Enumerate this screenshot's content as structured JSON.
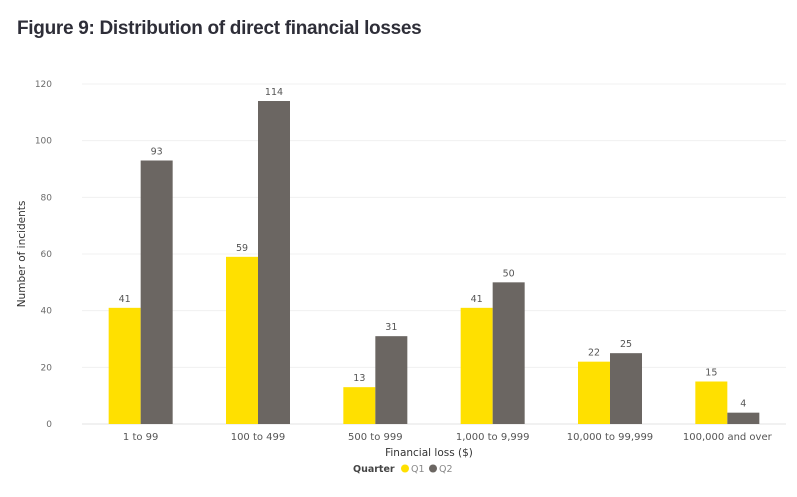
{
  "title": "Figure 9: Distribution of direct financial losses",
  "chart_data": {
    "type": "bar",
    "title": "Figure 9: Distribution of direct financial losses",
    "xlabel": "Financial loss ($)",
    "ylabel": "Number of incidents",
    "ylim": [
      0,
      120
    ],
    "yticks": [
      0,
      20,
      40,
      60,
      80,
      100,
      120
    ],
    "grid": true,
    "categories": [
      "1 to 99",
      "100 to 499",
      "500 to 999",
      "1,000 to 9,999",
      "10,000 to 99,999",
      "100,000 and over"
    ],
    "series": [
      {
        "name": "Q1",
        "color": "#ffe000",
        "values": [
          41,
          59,
          13,
          41,
          22,
          15
        ]
      },
      {
        "name": "Q2",
        "color": "#6b6662",
        "values": [
          93,
          114,
          31,
          50,
          25,
          4
        ]
      }
    ],
    "legend": {
      "title": "Quarter",
      "position": "bottom-center"
    }
  }
}
